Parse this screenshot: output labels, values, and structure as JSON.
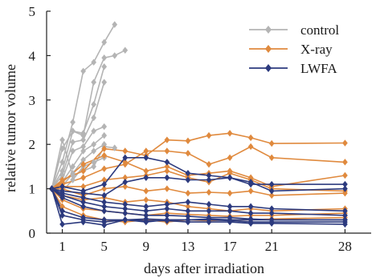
{
  "chart_data": {
    "type": "line",
    "title": "",
    "xlabel": "days after irradiation",
    "ylabel": "relative tumor volume",
    "xlim": [
      -0.5,
      30.5
    ],
    "ylim": [
      0,
      5
    ],
    "x_ticks": [
      1,
      5,
      9,
      13,
      17,
      21,
      28
    ],
    "y_ticks": [
      0,
      1,
      2,
      3,
      4,
      5
    ],
    "grid": false,
    "legend_position": "top-right",
    "series": [
      {
        "name": "control",
        "color": "#b4b4b4",
        "marker": "diamond",
        "lines": [
          {
            "x": [
              0,
              1,
              2,
              3,
              4,
              5,
              6
            ],
            "y": [
              1,
              1.6,
              2.5,
              3.65,
              3.85,
              4.3,
              4.7
            ]
          },
          {
            "x": [
              0,
              1,
              2,
              3,
              4,
              5,
              6,
              7
            ],
            "y": [
              1,
              1.4,
              2.3,
              2.2,
              3.4,
              3.95,
              4.0,
              4.12
            ]
          },
          {
            "x": [
              0,
              1,
              2,
              3,
              4,
              5
            ],
            "y": [
              1,
              1.9,
              2.3,
              2.25,
              2.9,
              3.75
            ]
          },
          {
            "x": [
              0,
              1,
              2,
              3,
              4,
              5
            ],
            "y": [
              1,
              1.3,
              2.05,
              2.1,
              2.6,
              3.4
            ]
          },
          {
            "x": [
              0,
              1,
              2,
              3,
              4,
              5
            ],
            "y": [
              1,
              1.2,
              1.85,
              1.95,
              2.3,
              2.4
            ]
          },
          {
            "x": [
              0,
              1,
              2,
              3,
              4,
              5
            ],
            "y": [
              1,
              1.15,
              1.5,
              1.85,
              2.0,
              2.2
            ]
          },
          {
            "x": [
              0,
              1,
              2,
              3,
              4,
              5
            ],
            "y": [
              1,
              1.05,
              1.35,
              1.65,
              1.85,
              2.0
            ]
          },
          {
            "x": [
              0,
              1,
              2,
              3,
              4,
              5
            ],
            "y": [
              1,
              0.95,
              1.2,
              1.5,
              1.6,
              1.7
            ]
          },
          {
            "x": [
              0,
              1,
              2,
              3,
              4,
              5,
              6
            ],
            "y": [
              1,
              2.1,
              1.3,
              1.4,
              1.5,
              1.95,
              1.92
            ]
          }
        ]
      },
      {
        "name": "X-ray",
        "color": "#e08a3e",
        "marker": "diamond",
        "lines": [
          {
            "x": [
              0,
              1,
              3,
              5,
              7,
              9,
              11,
              13,
              15,
              17,
              19,
              21,
              28
            ],
            "y": [
              1,
              1.2,
              1.4,
              1.9,
              1.85,
              1.75,
              2.1,
              2.08,
              2.2,
              2.25,
              2.15,
              2.02,
              2.03
            ]
          },
          {
            "x": [
              0,
              1,
              3,
              5,
              7,
              9,
              11,
              13,
              15,
              17,
              19,
              21,
              28
            ],
            "y": [
              1,
              1.1,
              1.25,
              1.45,
              1.55,
              1.85,
              1.85,
              1.8,
              1.55,
              1.7,
              1.95,
              1.7,
              1.6
            ]
          },
          {
            "x": [
              0,
              1,
              3,
              5,
              7,
              9,
              11,
              13,
              15,
              17,
              19,
              21,
              28
            ],
            "y": [
              1,
              1.15,
              1.55,
              1.75,
              1.6,
              1.4,
              1.5,
              1.3,
              1.35,
              1.4,
              1.25,
              1.05,
              1.3
            ]
          },
          {
            "x": [
              0,
              1,
              3,
              5,
              7,
              9,
              11,
              13,
              15,
              17,
              19,
              21,
              28
            ],
            "y": [
              1,
              1.05,
              1.05,
              1.2,
              1.25,
              1.3,
              1.4,
              1.25,
              1.15,
              1.35,
              1.2,
              1.0,
              0.95
            ]
          },
          {
            "x": [
              0,
              1,
              3,
              5,
              7,
              9,
              11,
              13,
              15,
              17,
              19,
              21,
              28
            ],
            "y": [
              1,
              1.0,
              0.85,
              1.0,
              1.05,
              0.95,
              1.0,
              0.9,
              0.92,
              0.9,
              0.95,
              0.85,
              0.9
            ]
          },
          {
            "x": [
              0,
              1,
              3,
              5,
              7,
              9,
              11,
              13,
              15,
              17,
              19,
              21,
              28
            ],
            "y": [
              1,
              0.85,
              0.75,
              0.8,
              0.7,
              0.75,
              0.7,
              0.6,
              0.55,
              0.5,
              0.55,
              0.5,
              0.55
            ]
          },
          {
            "x": [
              0,
              1,
              3,
              5,
              7,
              9,
              11,
              13,
              15,
              17,
              19,
              21,
              28
            ],
            "y": [
              1,
              0.75,
              0.55,
              0.5,
              0.45,
              0.4,
              0.45,
              0.42,
              0.4,
              0.38,
              0.4,
              0.4,
              0.45
            ]
          },
          {
            "x": [
              0,
              1,
              3,
              5,
              7,
              9,
              11,
              13,
              15,
              17,
              19,
              21,
              28
            ],
            "y": [
              1,
              0.6,
              0.4,
              0.3,
              0.25,
              0.3,
              0.25,
              0.3,
              0.28,
              0.3,
              0.3,
              0.32,
              0.35
            ]
          }
        ]
      },
      {
        "name": "LWFA",
        "color": "#2c3a7e",
        "marker": "diamond",
        "lines": [
          {
            "x": [
              0,
              1,
              3,
              5,
              7,
              9,
              11,
              13,
              15,
              17,
              19,
              21,
              28
            ],
            "y": [
              1,
              1.05,
              0.95,
              1.1,
              1.7,
              1.7,
              1.6,
              1.35,
              1.3,
              1.25,
              1.1,
              1.1,
              1.1
            ]
          },
          {
            "x": [
              0,
              1,
              3,
              5,
              7,
              9,
              11,
              13,
              15,
              17,
              19,
              21,
              28
            ],
            "y": [
              1,
              0.95,
              0.9,
              0.85,
              1.15,
              1.25,
              1.25,
              1.2,
              1.2,
              1.25,
              1.15,
              0.95,
              1.0
            ]
          },
          {
            "x": [
              0,
              1,
              3,
              5,
              7,
              9,
              11,
              13,
              15,
              17,
              19,
              21,
              28
            ],
            "y": [
              1,
              0.9,
              0.8,
              0.7,
              0.65,
              0.6,
              0.65,
              0.7,
              0.65,
              0.6,
              0.6,
              0.55,
              0.5
            ]
          },
          {
            "x": [
              0,
              1,
              3,
              5,
              7,
              9,
              11,
              13,
              15,
              17,
              19,
              21,
              28
            ],
            "y": [
              1,
              0.85,
              0.7,
              0.6,
              0.55,
              0.5,
              0.55,
              0.5,
              0.5,
              0.5,
              0.45,
              0.45,
              0.4
            ]
          },
          {
            "x": [
              0,
              1,
              3,
              5,
              7,
              9,
              11,
              13,
              15,
              17,
              19,
              21,
              28
            ],
            "y": [
              1,
              0.8,
              0.6,
              0.5,
              0.45,
              0.4,
              0.4,
              0.38,
              0.35,
              0.35,
              0.32,
              0.3,
              0.3
            ]
          },
          {
            "x": [
              0,
              1,
              3,
              5,
              7,
              9,
              11,
              13,
              15,
              17,
              19,
              21,
              28
            ],
            "y": [
              1,
              0.5,
              0.35,
              0.3,
              0.3,
              0.28,
              0.28,
              0.25,
              0.25,
              0.25,
              0.22,
              0.22,
              0.2
            ]
          },
          {
            "x": [
              0,
              1,
              3,
              5,
              7,
              9,
              11,
              13,
              15,
              17,
              19,
              21,
              28
            ],
            "y": [
              1,
              0.4,
              0.3,
              0.25,
              0.3,
              0.32,
              0.3,
              0.3,
              0.3,
              0.28,
              0.25,
              0.25,
              0.25
            ]
          },
          {
            "x": [
              0,
              1,
              3,
              5,
              7,
              9,
              11,
              13,
              15,
              17,
              19,
              21,
              28
            ],
            "y": [
              1,
              0.2,
              0.25,
              0.18,
              0.3,
              0.25,
              0.3,
              0.3,
              0.32,
              0.3,
              0.3,
              0.3,
              0.3
            ]
          }
        ]
      }
    ]
  }
}
